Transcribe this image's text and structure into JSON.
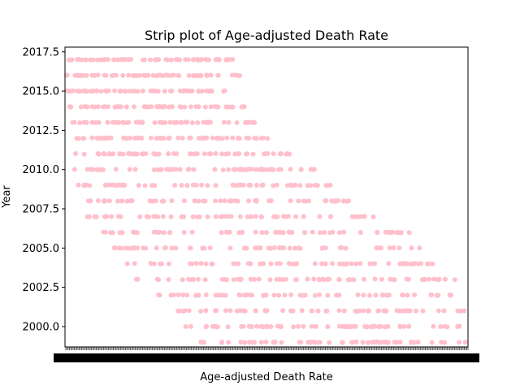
{
  "chart_data": {
    "type": "scatter",
    "title": "Strip plot of Age-adjusted Death Rate",
    "xlabel": "Age-adjusted Death Rate",
    "ylabel": "Year",
    "ylim": [
      1998.7,
      2017.8
    ],
    "y_ticks": [
      "2000.0",
      "2002.5",
      "2005.0",
      "2007.5",
      "2010.0",
      "2012.5",
      "2015.0",
      "2017.5"
    ],
    "x_ticks": "categorical, overlapping and unreadable",
    "color": "#ffc0cb",
    "grid": false,
    "legend": "none",
    "years": [
      1999,
      2000,
      2001,
      2002,
      2003,
      2004,
      2005,
      2006,
      2007,
      2008,
      2009,
      2010,
      2011,
      2012,
      2013,
      2014,
      2015,
      2016,
      2017
    ],
    "category_position_range_by_year": {
      "1999": [
        0.33,
        1.0
      ],
      "2000": [
        0.28,
        1.0
      ],
      "2001": [
        0.26,
        1.0
      ],
      "2002": [
        0.22,
        0.99
      ],
      "2003": [
        0.17,
        0.98
      ],
      "2004": [
        0.15,
        0.93
      ],
      "2005": [
        0.11,
        0.9
      ],
      "2006": [
        0.08,
        0.86
      ],
      "2007": [
        0.05,
        0.79
      ],
      "2008": [
        0.04,
        0.73
      ],
      "2009": [
        0.02,
        0.67
      ],
      "2010": [
        0.01,
        0.62
      ],
      "2011": [
        0.02,
        0.56
      ],
      "2012": [
        0.01,
        0.52
      ],
      "2013": [
        0.01,
        0.48
      ],
      "2014": [
        0.0,
        0.45
      ],
      "2015": [
        0.0,
        0.4
      ],
      "2016": [
        0.0,
        0.44
      ],
      "2017": [
        0.0,
        0.42
      ]
    },
    "points_per_year": 60
  }
}
